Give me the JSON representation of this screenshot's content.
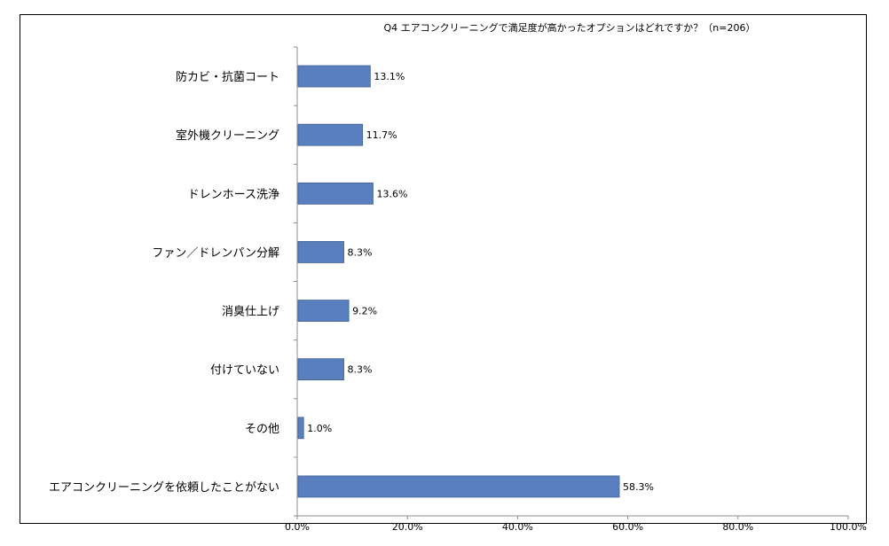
{
  "chart_data": {
    "type": "bar",
    "orientation": "horizontal",
    "title": "Q4 エアコンクリーニングで満足度が高かったオプションはどれですか？（n=206）",
    "categories": [
      "防カビ・抗菌コート",
      "室外機クリーニング",
      "ドレンホース洗浄",
      "ファン／ドレンパン分解",
      "消臭仕上げ",
      "付けていない",
      "その他",
      "エアコンクリーニングを依頼したことがない"
    ],
    "values": [
      13.1,
      11.7,
      13.6,
      8.3,
      9.2,
      8.3,
      1.0,
      58.3
    ],
    "value_labels": [
      "13.1%",
      "11.7%",
      "13.6%",
      "8.3%",
      "9.2%",
      "8.3%",
      "1.0%",
      "58.3%"
    ],
    "xlim": [
      0,
      100
    ],
    "x_ticks": [
      0,
      20,
      40,
      60,
      80,
      100
    ],
    "x_tick_labels": [
      "0.0%",
      "20.0%",
      "40.0%",
      "60.0%",
      "80.0%",
      "100.0%"
    ],
    "xlabel": "",
    "ylabel": "",
    "grid": false,
    "bar_color": "#5a7fbe",
    "bar_edge_color": "#3f5f93"
  }
}
